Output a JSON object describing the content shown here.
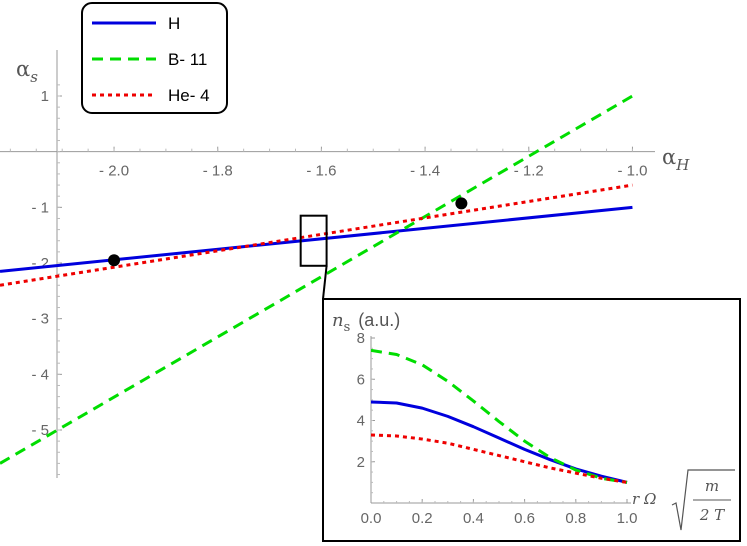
{
  "chart_data": [
    {
      "type": "line",
      "title": "",
      "xlabel": "αH",
      "ylabel": "αs",
      "xlim": [
        -2.22,
        -0.97
      ],
      "ylim": [
        -5.95,
        1.5
      ],
      "x_ticks": [
        -2.0,
        -1.8,
        -1.6,
        -1.4,
        -1.2,
        -1.0
      ],
      "x_tick_labels": [
        "- 2.0",
        "- 1.8",
        "- 1.6",
        "- 1.4",
        "- 1.2",
        "- 1.0"
      ],
      "y_ticks": [
        1,
        -1,
        -2,
        -3,
        -4,
        -5
      ],
      "y_tick_labels": [
        "1",
        "- 1",
        "- 2",
        "- 3",
        "- 4",
        "- 5"
      ],
      "legend": {
        "position": "top-left",
        "entries": [
          "H",
          "B- 11",
          "He- 4"
        ]
      },
      "series": [
        {
          "name": "H",
          "color": "#0000dd",
          "style": "solid",
          "x": [
            -2.22,
            -1.0
          ],
          "y": [
            -2.15,
            -1.0
          ]
        },
        {
          "name": "B- 11",
          "color": "#00dd00",
          "style": "dashed",
          "x": [
            -2.22,
            -1.0
          ],
          "y": [
            -5.6,
            1.0
          ]
        },
        {
          "name": "He- 4",
          "color": "#ee0000",
          "style": "dotted",
          "x": [
            -2.22,
            -1.0
          ],
          "y": [
            -2.4,
            -0.6
          ]
        }
      ],
      "points": [
        {
          "x": -2.0,
          "y": -1.95
        },
        {
          "x": -1.33,
          "y": -0.93
        }
      ],
      "highlight_box": {
        "x": [
          -1.64,
          -1.59
        ],
        "y": [
          -2.05,
          -1.15
        ]
      }
    },
    {
      "type": "line",
      "title": "",
      "ylabel": "ns",
      "ylabel_unit": "(a.u.)",
      "xlabel": "r Ω √(m / 2 T)",
      "xlabel_parts": {
        "prefix": "r Ω",
        "numerator": "m",
        "denominator": "2 T"
      },
      "xlim": [
        0,
        1.0
      ],
      "ylim": [
        0,
        8
      ],
      "x_ticks": [
        0.0,
        0.2,
        0.4,
        0.6,
        0.8,
        1.0
      ],
      "x_tick_labels": [
        "0.0",
        "0.2",
        "0.4",
        "0.6",
        "0.8",
        "1.0"
      ],
      "y_ticks": [
        2,
        4,
        6,
        8
      ],
      "y_tick_labels": [
        "2",
        "4",
        "6",
        "8"
      ],
      "series": [
        {
          "name": "H",
          "color": "#0000dd",
          "style": "solid",
          "x": [
            0,
            0.1,
            0.2,
            0.3,
            0.4,
            0.5,
            0.6,
            0.7,
            0.8,
            0.9,
            1.0
          ],
          "y": [
            4.9,
            4.85,
            4.6,
            4.2,
            3.7,
            3.15,
            2.6,
            2.1,
            1.65,
            1.3,
            1.0
          ]
        },
        {
          "name": "B- 11",
          "color": "#00dd00",
          "style": "dashed",
          "x": [
            0,
            0.1,
            0.2,
            0.3,
            0.4,
            0.5,
            0.6,
            0.7,
            0.8,
            0.9,
            1.0
          ],
          "y": [
            7.4,
            7.2,
            6.7,
            5.9,
            4.95,
            3.95,
            3.0,
            2.2,
            1.6,
            1.2,
            1.0
          ]
        },
        {
          "name": "He- 4",
          "color": "#ee0000",
          "style": "dotted",
          "x": [
            0,
            0.1,
            0.2,
            0.3,
            0.4,
            0.5,
            0.6,
            0.7,
            0.8,
            0.9,
            1.0
          ],
          "y": [
            3.3,
            3.25,
            3.1,
            2.9,
            2.6,
            2.3,
            2.0,
            1.7,
            1.45,
            1.2,
            1.0
          ]
        }
      ]
    }
  ]
}
